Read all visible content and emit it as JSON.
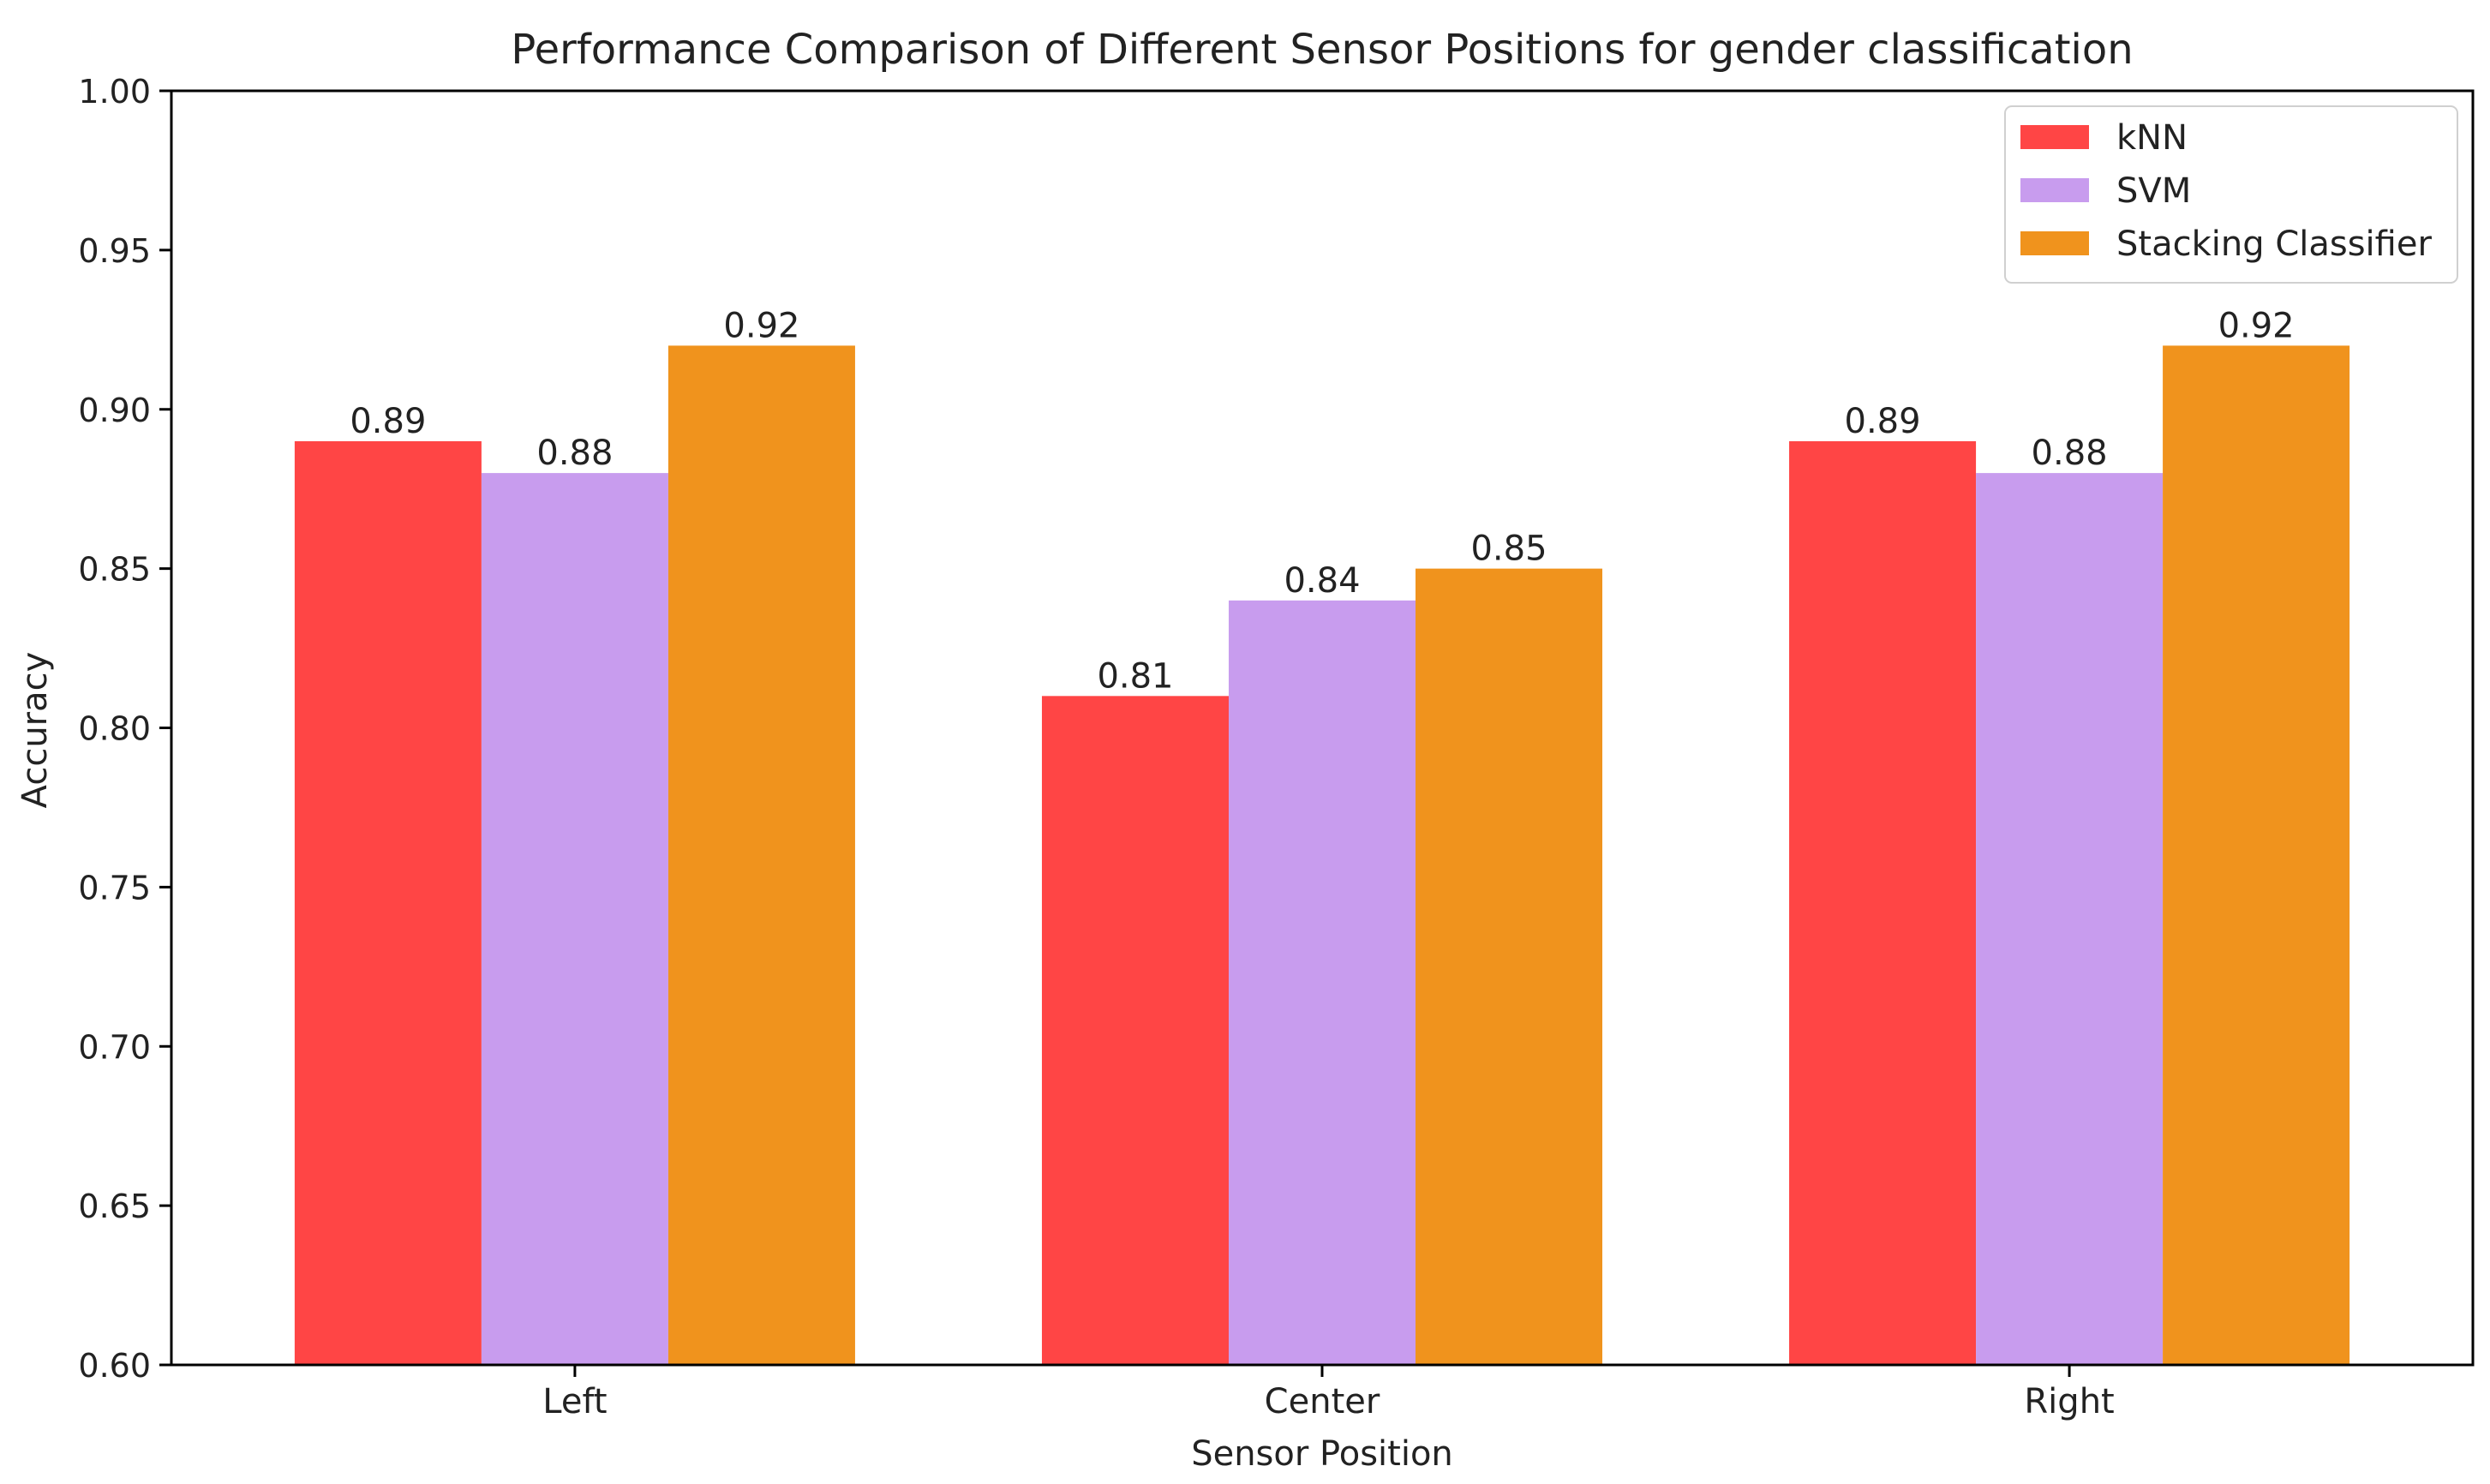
{
  "chart_data": {
    "type": "bar",
    "title": "Performance Comparison of Different Sensor Positions for gender classification",
    "xlabel": "Sensor Position",
    "ylabel": "Accuracy",
    "categories": [
      "Left",
      "Center",
      "Right"
    ],
    "series": [
      {
        "name": "kNN",
        "values": [
          0.89,
          0.81,
          0.89
        ],
        "color": "#ff4545"
      },
      {
        "name": "SVM",
        "values": [
          0.88,
          0.84,
          0.88
        ],
        "color": "#c89cee"
      },
      {
        "name": "Stacking Classifier",
        "values": [
          0.92,
          0.85,
          0.92
        ],
        "color": "#f0931d"
      }
    ],
    "data_labels": [
      [
        "0.89",
        "0.81",
        "0.89"
      ],
      [
        "0.88",
        "0.84",
        "0.88"
      ],
      [
        "0.92",
        "0.85",
        "0.92"
      ]
    ],
    "ylim": [
      0.6,
      1.0
    ],
    "yticks": [
      "0.60",
      "0.65",
      "0.70",
      "0.75",
      "0.80",
      "0.85",
      "0.90",
      "0.95",
      "1.00"
    ],
    "grid": false,
    "legend_position": "top-right"
  }
}
